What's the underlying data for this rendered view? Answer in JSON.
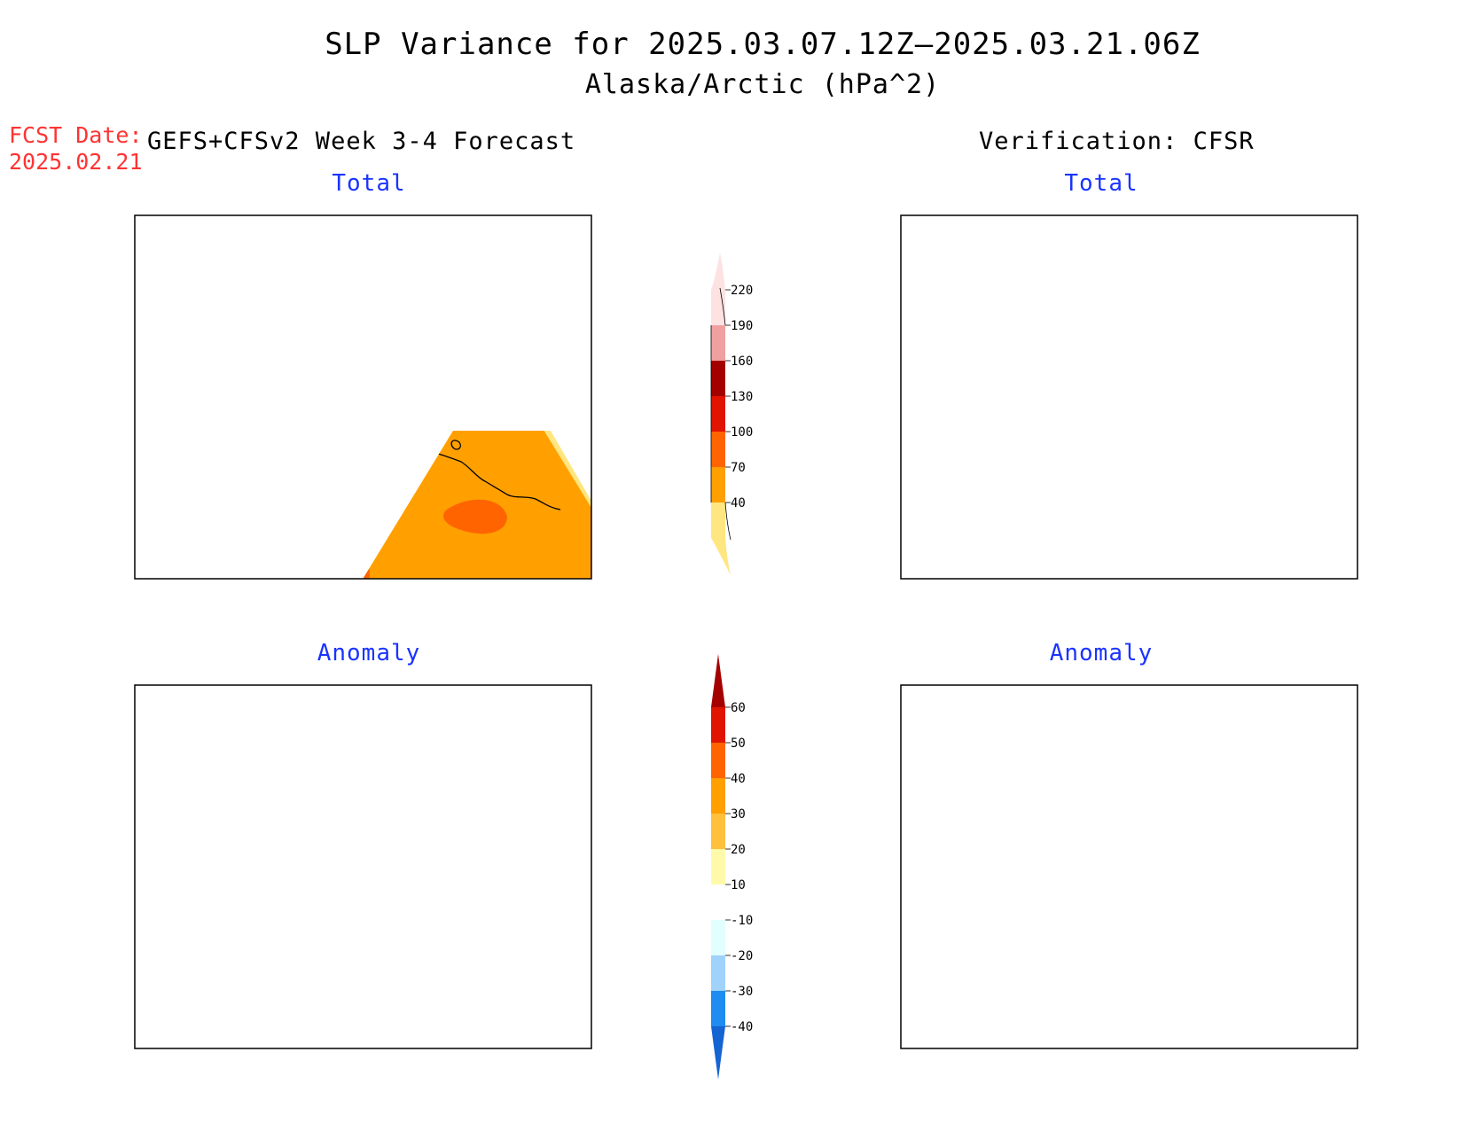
{
  "title": "SLP Variance for 2025.03.07.12Z–2025.03.21.06Z",
  "subtitle": "Alaska/Arctic (hPa^2)",
  "fcst_date_label": "FCST Date:",
  "fcst_date_value": "2025.02.21",
  "left_column_title": "GEFS+CFSv2 Week 3-4 Forecast",
  "right_column_title": "Verification: CFSR",
  "panels": {
    "fcst_total": "Total",
    "verif_total": "Total",
    "fcst_anomaly": "Anomaly",
    "verif_anomaly": "Anomaly"
  },
  "colorbar_total": {
    "ticks": [
      "40",
      "70",
      "100",
      "130",
      "160",
      "190",
      "220"
    ],
    "colors": [
      "#ffe680",
      "#ffa000",
      "#ff6400",
      "#e01400",
      "#a50000",
      "#f0a0a0",
      "#fde2e2"
    ]
  },
  "colorbar_anomaly": {
    "ticks": [
      "-40",
      "-30",
      "-20",
      "-10",
      "10",
      "20",
      "30",
      "40",
      "50",
      "60"
    ],
    "colors": [
      "#1464d2",
      "#1e8cf0",
      "#a0d2fa",
      "#e1ffff",
      "#ffffff",
      "#fffaaa",
      "#ffc03c",
      "#ffa000",
      "#ff6400",
      "#e01400",
      "#a50000"
    ]
  },
  "fill_colors": {
    "c40": "#ffe680",
    "c70": "#ffa000",
    "c100": "#ff6400",
    "c130": "#e01400",
    "c160": "#a50000",
    "c190": "#f0a0a0",
    "c220": "#fde2e2",
    "a10": "#fffaaa",
    "a20": "#ffc03c",
    "a30": "#ffa000",
    "a40": "#ff6400",
    "a50": "#e01400",
    "a60": "#a50000",
    "n10": "#e1ffff",
    "n20": "#a0d2fa",
    "n30": "#1e8cf0",
    "n40": "#1464d2"
  }
}
